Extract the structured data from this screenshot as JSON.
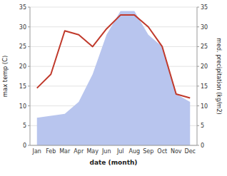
{
  "chart_data": {
    "type": "line",
    "categories": [
      "Jan",
      "Feb",
      "Mar",
      "Apr",
      "May",
      "Jun",
      "Jul",
      "Aug",
      "Sep",
      "Oct",
      "Nov",
      "Dec"
    ],
    "series": [
      {
        "type": "area",
        "color": "#b8c5ee",
        "axis": "y2",
        "values": [
          7.0,
          7.5,
          8.0,
          11.0,
          18.0,
          28.0,
          34.0,
          34.0,
          28.0,
          25.0,
          13.0,
          11.0
        ]
      },
      {
        "type": "line",
        "color": "#c0392b",
        "values": [
          14.5,
          18.0,
          29.0,
          28.0,
          25.0,
          29.5,
          33.0,
          33.0,
          30.0,
          25.0,
          13.0,
          12.0
        ]
      }
    ],
    "xlabel": "date (month)",
    "ylabel": "max temp (C)",
    "y2label": "med. precipitation (kg/m2)",
    "ylim": [
      0,
      35
    ],
    "yticks": [
      0,
      5,
      10,
      15,
      20,
      25,
      30,
      35
    ],
    "y2lim": [
      0,
      35
    ],
    "y2ticks": [
      0,
      5,
      10,
      15,
      20,
      25,
      30,
      35
    ],
    "grid": true
  }
}
